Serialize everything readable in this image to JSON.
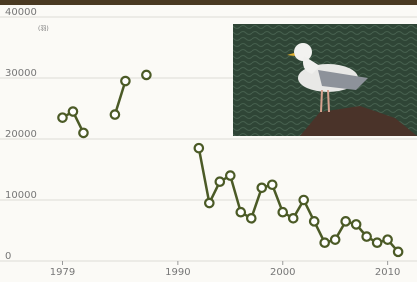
{
  "chart_data": {
    "type": "line",
    "y_unit": "(羽)",
    "x": [
      1979,
      1980,
      1981,
      1982,
      1983,
      1984,
      1985,
      1986,
      1987,
      1988,
      1989,
      1990,
      1991,
      1992,
      1993,
      1994,
      1995,
      1996,
      1997,
      1998,
      1999,
      2000,
      2001,
      2002,
      2003,
      2004,
      2005,
      2006,
      2007,
      2008,
      2009,
      2010,
      2011
    ],
    "values": [
      23500,
      24500,
      21000,
      null,
      null,
      24000,
      29500,
      null,
      30500,
      null,
      null,
      null,
      null,
      18500,
      9500,
      13000,
      14000,
      8000,
      7000,
      12000,
      12500,
      8000,
      7000,
      10000,
      6500,
      3000,
      3500,
      6500,
      6000,
      4000,
      3000,
      3500,
      1500
    ],
    "color": "#4b5a26",
    "xlim": [
      1978,
      2012.8
    ],
    "xticks": [
      1979,
      1990,
      2000,
      2010
    ],
    "ylim": [
      0,
      40000
    ],
    "yticks": [
      0,
      10000,
      20000,
      30000,
      40000
    ],
    "grid": true
  }
}
